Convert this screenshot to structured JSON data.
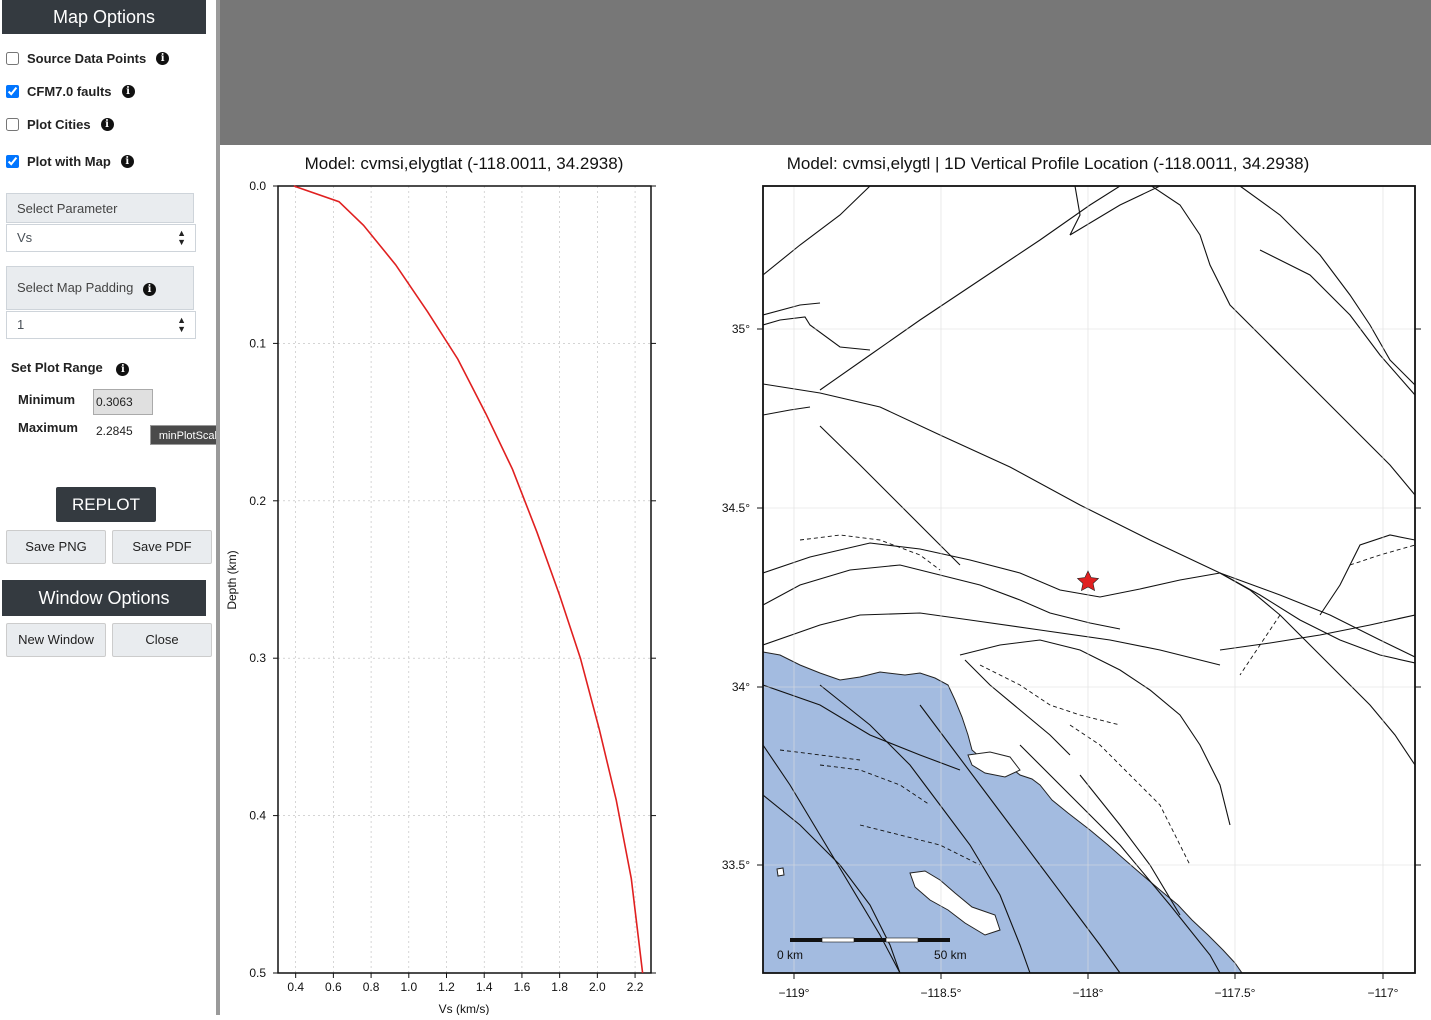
{
  "sidebar": {
    "map_options_title": "Map Options",
    "checkboxes": [
      {
        "label": "Source Data Points",
        "checked": false
      },
      {
        "label": "CFM7.0 faults",
        "checked": true
      },
      {
        "label": "Plot Cities",
        "checked": false
      },
      {
        "label": "Plot with Map",
        "checked": true
      }
    ],
    "select_parameter": {
      "label": "Select Parameter",
      "value": "Vs"
    },
    "select_map_padding": {
      "label": "Select Map Padding",
      "value": "1"
    },
    "plot_range": {
      "label": "Set Plot Range",
      "minimum_label": "Minimum",
      "minimum_value": "0.3063",
      "maximum_label": "Maximum",
      "maximum_value": "2.2845",
      "tooltip": "minPlotScale"
    },
    "replot_label": "REPLOT",
    "save_png_label": "Save PNG",
    "save_pdf_label": "Save PDF",
    "window_options_title": "Window Options",
    "new_window_label": "New Window",
    "close_label": "Close"
  },
  "colors": {
    "sidebar_header": "#343a40",
    "top_bar": "#777777",
    "profile_line": "#e02020",
    "ocean": "#a3bbe0",
    "star": "#e02020"
  },
  "chart_data": [
    {
      "type": "line",
      "title": "Model: cvmsi,elygtlat (-118.0011, 34.2938)",
      "xlabel": "Vs (km/s)",
      "ylabel": "Depth (km)",
      "xlim": [
        0.3063,
        2.2845
      ],
      "ylim": [
        0.5,
        0.0
      ],
      "xticks": [
        "0.4",
        "0.6",
        "0.8",
        "1.0",
        "1.2",
        "1.4",
        "1.6",
        "1.8",
        "2.0",
        "2.2"
      ],
      "yticks": [
        "0.0",
        "0.1",
        "0.2",
        "0.3",
        "0.4",
        "0.5"
      ],
      "grid": true,
      "series": [
        {
          "x": [
            0.39,
            0.63,
            0.76,
            0.93,
            1.1,
            1.26,
            1.41,
            1.55,
            1.68,
            1.8,
            1.91,
            2.01,
            2.1,
            2.18,
            2.24
          ],
          "y": [
            0.0,
            0.01,
            0.025,
            0.05,
            0.08,
            0.11,
            0.145,
            0.18,
            0.22,
            0.26,
            0.3,
            0.345,
            0.39,
            0.44,
            0.5
          ]
        }
      ]
    },
    {
      "type": "map",
      "title": "Model: cvmsi,elygtl | 1D Vertical Profile Location (-118.0011, 34.2938)",
      "xticks": [
        "−119°",
        "−118.5°",
        "−118°",
        "−117.5°",
        "−117°"
      ],
      "yticks": [
        "35°",
        "34.5°",
        "34°",
        "33.5°"
      ],
      "marker": {
        "lon": -118.0011,
        "lat": 34.2938,
        "symbol": "star"
      },
      "scale_bar": {
        "start_label": "0 km",
        "end_label": "50 km"
      }
    }
  ]
}
